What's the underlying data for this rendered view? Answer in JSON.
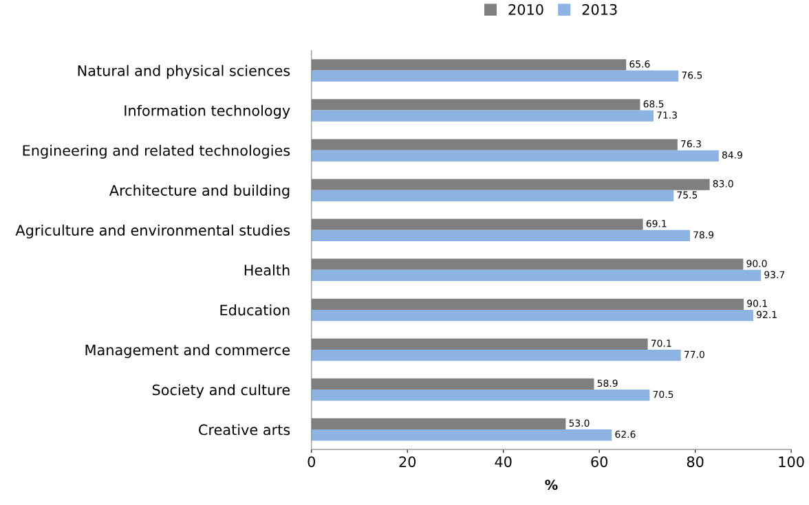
{
  "chart_data": {
    "type": "bar",
    "orientation": "horizontal",
    "xlabel": "%",
    "categories": [
      "Natural and physical sciences",
      "Information technology",
      "Engineering and related technologies",
      "Architecture and building",
      "Agriculture and environmental studies",
      "Health",
      "Education",
      "Management and commerce",
      "Society and culture",
      "Creative arts"
    ],
    "series": [
      {
        "name": "2010",
        "color": "#7f7f7f",
        "values": [
          65.6,
          68.5,
          76.3,
          83.0,
          69.1,
          90.0,
          90.1,
          70.1,
          58.9,
          53.0
        ],
        "value_labels": [
          "65.6",
          "68.5",
          "76.3",
          "83.0",
          "69.1",
          "90.0",
          "90.1",
          "70.1",
          "58.9",
          "53.0"
        ]
      },
      {
        "name": "2013",
        "color": "#8db3e2",
        "values": [
          76.5,
          71.3,
          84.9,
          75.5,
          78.9,
          93.7,
          92.1,
          77.0,
          70.5,
          62.6
        ],
        "value_labels": [
          "76.5",
          "71.3",
          "84.9",
          "75.5",
          "78.9",
          "93.7",
          "92.1",
          "77.0",
          "70.5",
          "62.6"
        ]
      }
    ],
    "xlim": [
      0,
      100
    ],
    "xticks": [
      0,
      20,
      40,
      60,
      80,
      100
    ],
    "grid": false,
    "legend": "top"
  }
}
